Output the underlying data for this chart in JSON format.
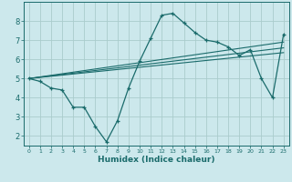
{
  "xlabel": "Humidex (Indice chaleur)",
  "bg_color": "#cce8ec",
  "grid_color": "#aacccc",
  "line_color": "#1a6b6b",
  "spine_color": "#1a6b6b",
  "xlim": [
    -0.5,
    23.5
  ],
  "ylim": [
    1.5,
    9.0
  ],
  "yticks": [
    2,
    3,
    4,
    5,
    6,
    7,
    8
  ],
  "xticks": [
    0,
    1,
    2,
    3,
    4,
    5,
    6,
    7,
    8,
    9,
    10,
    11,
    12,
    13,
    14,
    15,
    16,
    17,
    18,
    19,
    20,
    21,
    22,
    23
  ],
  "main_x": [
    0,
    1,
    2,
    3,
    4,
    5,
    6,
    7,
    8,
    9,
    10,
    11,
    12,
    13,
    14,
    15,
    16,
    17,
    18,
    19,
    20,
    21,
    22,
    23
  ],
  "main_y": [
    5.0,
    4.85,
    4.5,
    4.4,
    3.5,
    3.5,
    2.5,
    1.7,
    2.8,
    4.5,
    5.9,
    7.1,
    8.3,
    8.4,
    7.9,
    7.4,
    7.0,
    6.9,
    6.65,
    6.2,
    6.5,
    5.0,
    4.0,
    7.3
  ],
  "line1_x": [
    0,
    23
  ],
  "line1_y": [
    5.0,
    6.9
  ],
  "line2_x": [
    0,
    23
  ],
  "line2_y": [
    5.0,
    6.6
  ],
  "line3_x": [
    0,
    23
  ],
  "line3_y": [
    5.0,
    6.35
  ]
}
